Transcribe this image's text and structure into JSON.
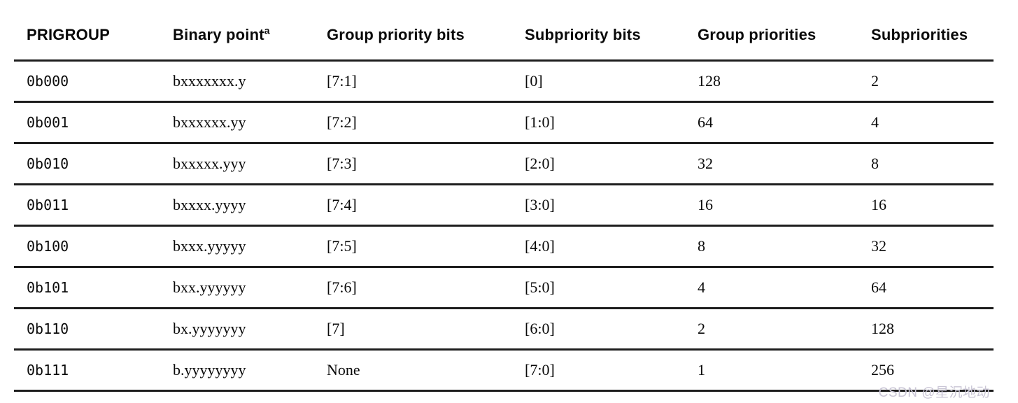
{
  "table": {
    "columns": [
      {
        "key": "prigroup",
        "label": "PRIGROUP",
        "superscript": ""
      },
      {
        "key": "binary-point",
        "label": "Binary point",
        "superscript": "a"
      },
      {
        "key": "group-priority-bits",
        "label": "Group priority bits",
        "superscript": ""
      },
      {
        "key": "subpriority-bits",
        "label": "Subpriority bits",
        "superscript": ""
      },
      {
        "key": "group-priorities",
        "label": "Group priorities",
        "superscript": ""
      },
      {
        "key": "subpriorities",
        "label": "Subpriorities",
        "superscript": ""
      }
    ],
    "rows": [
      [
        "0b000",
        "bxxxxxxx.y",
        "[7:1]",
        "[0]",
        "128",
        "2"
      ],
      [
        "0b001",
        "bxxxxxx.yy",
        "[7:2]",
        "[1:0]",
        "64",
        "4"
      ],
      [
        "0b010",
        "bxxxxx.yyy",
        "[7:3]",
        "[2:0]",
        "32",
        "8"
      ],
      [
        "0b011",
        "bxxxx.yyyy",
        "[7:4]",
        "[3:0]",
        "16",
        "16"
      ],
      [
        "0b100",
        "bxxx.yyyyy",
        "[7:5]",
        "[4:0]",
        "8",
        "32"
      ],
      [
        "0b101",
        "bxx.yyyyyy",
        "[7:6]",
        "[5:0]",
        "4",
        "64"
      ],
      [
        "0b110",
        "bx.yyyyyyy",
        "[7]",
        "[6:0]",
        "2",
        "128"
      ],
      [
        "0b111",
        "b.yyyyyyyy",
        "None",
        "[7:0]",
        "1",
        "256"
      ]
    ]
  },
  "watermark": {
    "text": "CSDN @星沉地动"
  },
  "colors": {
    "background": "#ffffff",
    "text": "#0a0a0a",
    "rule": "#1e1e1e",
    "watermark": "#cac6d6"
  }
}
